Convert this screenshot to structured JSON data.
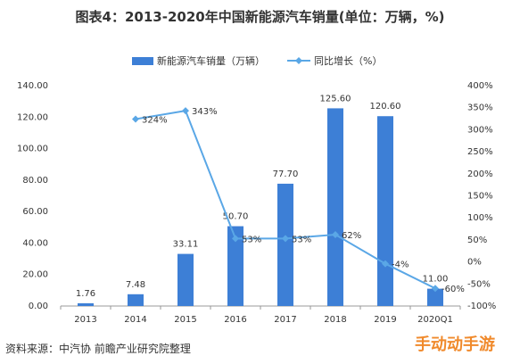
{
  "title": "图表4：2013-2020年中国新能源汽车销量(单位：万辆，%)",
  "source": "资料来源：中汽协 前瞻产业研究院整理",
  "watermark_badge": "手动动手游",
  "colors": {
    "bar": "#3d7fd6",
    "line": "#5aa7e6",
    "axis": "#999999",
    "text": "#333333"
  },
  "chart_data": {
    "type": "bar",
    "categories": [
      "2013",
      "2014",
      "2015",
      "2016",
      "2017",
      "2018",
      "2019",
      "2020Q1"
    ],
    "series": [
      {
        "name": "新能源汽车销量（万辆）",
        "type": "bar",
        "axis": "left",
        "values": [
          1.76,
          7.48,
          33.11,
          50.7,
          77.7,
          125.6,
          120.6,
          11.0
        ],
        "labels": [
          "1.76",
          "7.48",
          "33.11",
          "50.70",
          "77.70",
          "125.60",
          "120.60",
          "11.00"
        ]
      },
      {
        "name": "同比增长（%）",
        "type": "line",
        "axis": "right",
        "values": [
          null,
          324,
          343,
          53,
          53,
          62,
          -4,
          -60
        ],
        "labels": [
          "",
          "324%",
          "343%",
          "53%",
          "53%",
          "62%",
          "-4%",
          "-60%"
        ]
      }
    ],
    "y_left": {
      "ylim": [
        0,
        140
      ],
      "ticks": [
        0,
        20,
        40,
        60,
        80,
        100,
        120,
        140
      ],
      "tick_labels": [
        "0.00",
        "20.00",
        "40.00",
        "60.00",
        "80.00",
        "100.00",
        "120.00",
        "140.00"
      ]
    },
    "y_right": {
      "ylim": [
        -100,
        400
      ],
      "ticks": [
        -100,
        -50,
        0,
        50,
        100,
        150,
        200,
        250,
        300,
        350,
        400
      ],
      "tick_labels": [
        "-100%",
        "-50%",
        "0%",
        "50%",
        "100%",
        "150%",
        "200%",
        "250%",
        "300%",
        "350%",
        "400%"
      ]
    },
    "legend_position": "top",
    "grid": false
  }
}
